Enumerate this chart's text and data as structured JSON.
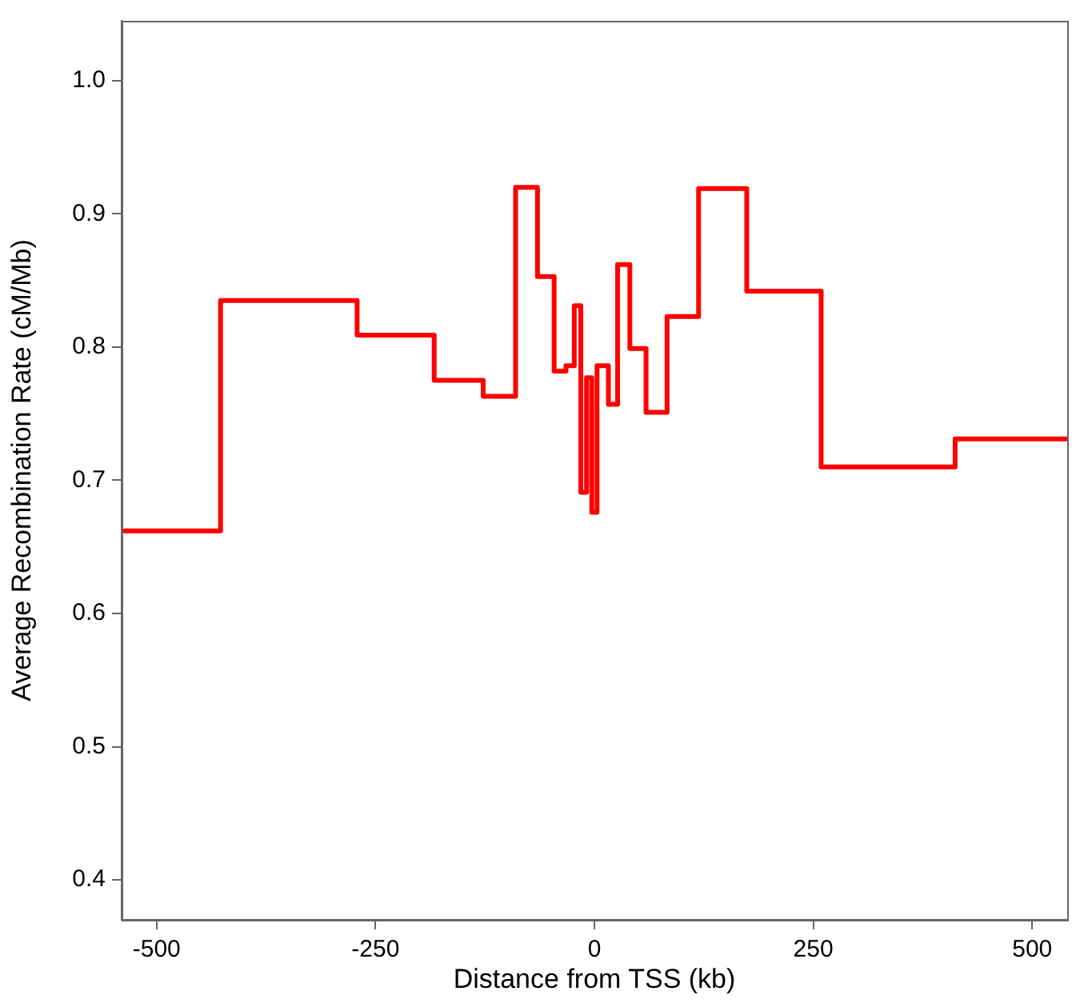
{
  "chart_data": {
    "type": "step",
    "xlabel": "Distance from TSS (kb)",
    "ylabel": "Average Recombination Rate (cM/Mb)",
    "x": [
      -540,
      -427,
      -271,
      -183,
      -127,
      -90,
      -65,
      -46,
      -32.5,
      -23,
      -15.5,
      -9,
      -3,
      3,
      16,
      26.5,
      40.5,
      59,
      83,
      119,
      174,
      259,
      412,
      540
    ],
    "series": [
      {
        "color": "#ff0000",
        "values": [
          0.662,
          0.835,
          0.809,
          0.775,
          0.763,
          0.92,
          0.853,
          0.782,
          0.786,
          0.831,
          0.691,
          0.777,
          0.676,
          0.786,
          0.757,
          0.862,
          0.799,
          0.751,
          0.823,
          0.919,
          0.842,
          0.71,
          0.731,
          0.731
        ]
      }
    ],
    "xlim": [
      -540,
      540
    ],
    "xticks": [
      -500,
      -250,
      0,
      250,
      500
    ],
    "ylim": [
      0.37,
      1.045
    ],
    "yticks": [
      0.4,
      0.5,
      0.6,
      0.7,
      0.8,
      0.9,
      {
        "value": 1,
        "label": "1.0"
      }
    ],
    "grid": false,
    "legend": false
  }
}
